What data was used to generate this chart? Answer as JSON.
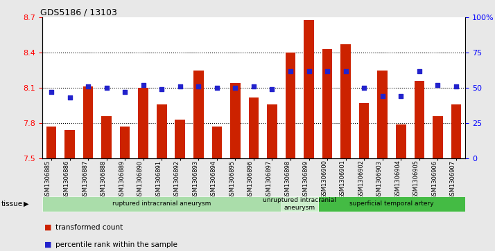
{
  "title": "GDS5186 / 13103",
  "samples": [
    "GSM1306885",
    "GSM1306886",
    "GSM1306887",
    "GSM1306888",
    "GSM1306889",
    "GSM1306890",
    "GSM1306891",
    "GSM1306892",
    "GSM1306893",
    "GSM1306894",
    "GSM1306895",
    "GSM1306896",
    "GSM1306897",
    "GSM1306898",
    "GSM1306899",
    "GSM1306900",
    "GSM1306901",
    "GSM1306902",
    "GSM1306903",
    "GSM1306904",
    "GSM1306905",
    "GSM1306906",
    "GSM1306907"
  ],
  "bar_values": [
    7.77,
    7.74,
    8.11,
    7.86,
    7.77,
    8.1,
    7.96,
    7.83,
    8.25,
    7.77,
    8.14,
    8.02,
    7.96,
    8.4,
    8.68,
    8.43,
    8.47,
    7.97,
    8.25,
    7.79,
    8.16,
    7.86,
    7.96
  ],
  "percentile_values": [
    47,
    43,
    51,
    50,
    47,
    52,
    49,
    51,
    51,
    50,
    50,
    51,
    49,
    62,
    62,
    62,
    62,
    50,
    44,
    44,
    62,
    52,
    51
  ],
  "ylim_left": [
    7.5,
    8.7
  ],
  "ylim_right": [
    0,
    100
  ],
  "bar_color": "#cc2200",
  "dot_color": "#2222cc",
  "fig_bg": "#e8e8e8",
  "plot_bg": "#ffffff",
  "tissue_groups": [
    {
      "label": "ruptured intracranial aneurysm",
      "start": 0,
      "end": 12,
      "color": "#aaddaa"
    },
    {
      "label": "unruptured intracranial\naneurysm",
      "start": 13,
      "end": 14,
      "color": "#cceecc"
    },
    {
      "label": "superficial temporal artery",
      "start": 15,
      "end": 22,
      "color": "#44bb44"
    }
  ],
  "tissue_label": "tissue",
  "legend_bar_label": "transformed count",
  "legend_dot_label": "percentile rank within the sample",
  "left_yticks": [
    7.5,
    7.8,
    8.1,
    8.4,
    8.7
  ],
  "right_yticks": [
    0,
    25,
    50,
    75,
    100
  ],
  "grid_lines": [
    7.8,
    8.1,
    8.4
  ]
}
